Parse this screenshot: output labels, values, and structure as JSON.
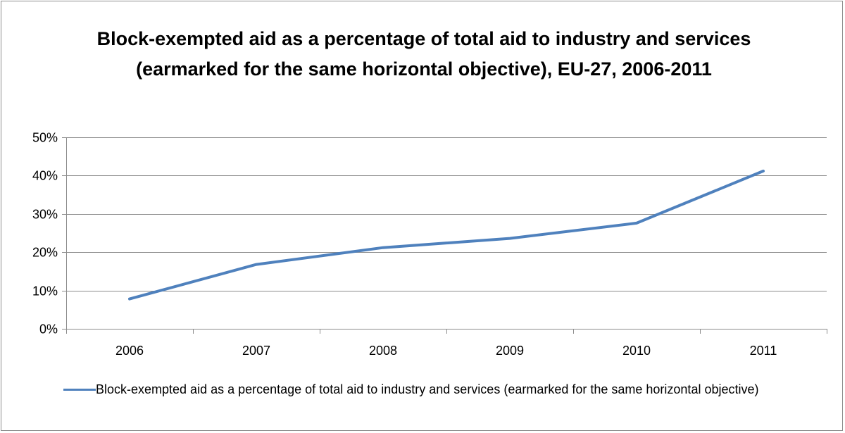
{
  "chart_data": {
    "type": "line",
    "title": "Block-exempted aid as a percentage of total aid to industry and services (earmarked for the same horizontal objective), EU-27, 2006-2011",
    "xlabel": "",
    "ylabel": "",
    "categories": [
      "2006",
      "2007",
      "2008",
      "2009",
      "2010",
      "2011"
    ],
    "series": [
      {
        "name": "Block-exempted aid as a percentage of total aid to industry and services (earmarked for the same horizontal objective)",
        "values": [
          7.8,
          16.8,
          21.2,
          23.6,
          27.6,
          41.2
        ]
      }
    ],
    "ylim": [
      0,
      50
    ],
    "y_ticks": [
      0,
      10,
      20,
      30,
      40,
      50
    ],
    "y_tick_format": "percent",
    "grid": true,
    "legend_position": "bottom",
    "line_color": "#4f81bd",
    "grid_color": "#8c8c8c"
  }
}
